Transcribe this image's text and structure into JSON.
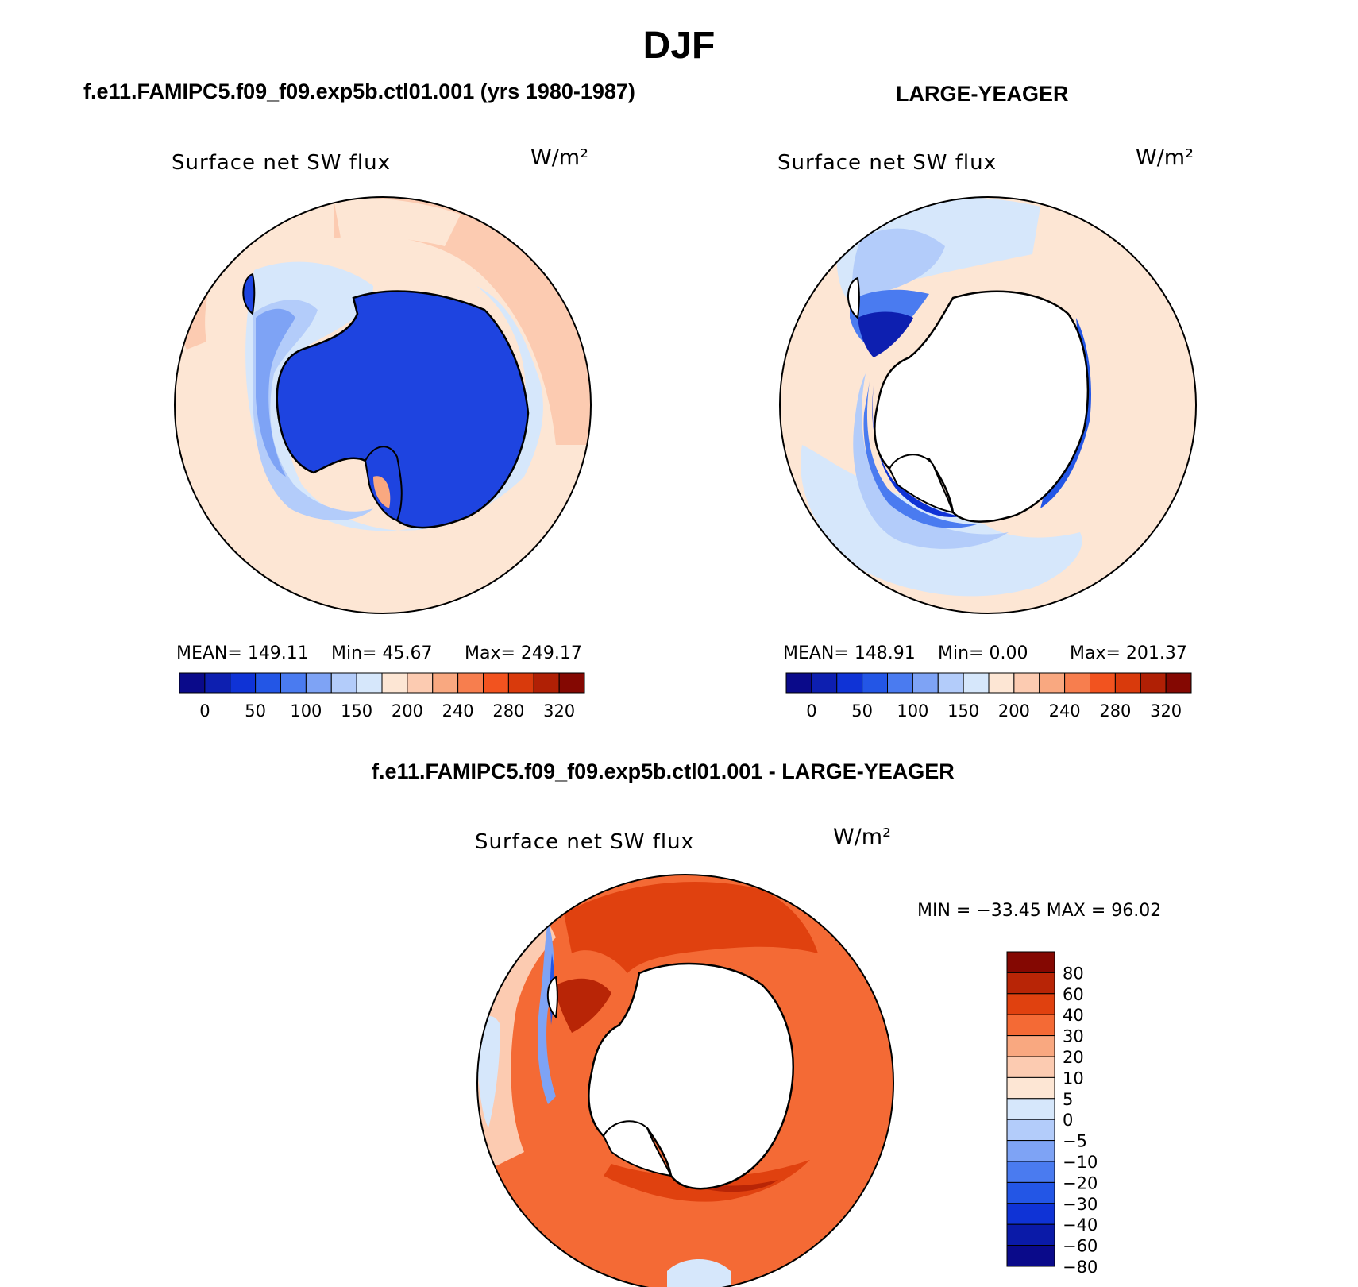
{
  "figure": {
    "title": "DJF"
  },
  "panels": [
    {
      "title": "f.e11.FAMIPC5.f09_f09.exp5b.ctl01.001 (yrs 1980-1987)",
      "field": "Surface net SW flux",
      "units": "W/m²",
      "stats": {
        "mean": "MEAN= 149.11",
        "min": "Min=   45.67",
        "max": "Max= 249.17"
      }
    },
    {
      "title": "LARGE-YEAGER",
      "field": "Surface net SW flux",
      "units": "W/m²",
      "stats": {
        "mean": "MEAN= 148.91",
        "min": "Min=    0.00",
        "max": "Max= 201.37"
      }
    },
    {
      "title": "f.e11.FAMIPC5.f09_f09.exp5b.ctl01.001 - LARGE-YEAGER",
      "field": "Surface net SW flux",
      "units": "W/m²",
      "stats": {
        "range": "MIN = −33.45 MAX =   96.02"
      }
    }
  ],
  "colorbars": {
    "absolute": {
      "colors": [
        "#0a0a8a",
        "#0d1fb0",
        "#0f33d6",
        "#2356e6",
        "#4a7bf0",
        "#7ea3f5",
        "#b3ccfa",
        "#d6e7fb",
        "#fde6d4",
        "#fccbb1",
        "#f9a880",
        "#f77e4e",
        "#f2531f",
        "#d93a0c",
        "#b02005",
        "#840802"
      ],
      "labels": [
        "0",
        "50",
        "100",
        "150",
        "200",
        "240",
        "280",
        "320"
      ]
    },
    "difference": {
      "colors": [
        "#840802",
        "#b82506",
        "#e0410f",
        "#f46a35",
        "#f9a880",
        "#fccbb1",
        "#fde6d4",
        "#d6e7fb",
        "#b3ccfa",
        "#7ea3f5",
        "#4a7bf0",
        "#2356e6",
        "#0f33d6",
        "#0a1aa8",
        "#0a0a8a"
      ],
      "labels": [
        "80",
        "60",
        "40",
        "30",
        "20",
        "10",
        "5",
        "0",
        "−5",
        "−10",
        "−20",
        "−30",
        "−40",
        "−60",
        "−80"
      ]
    }
  },
  "map_colors": {
    "ocean_light": "#fde6d4",
    "ocean_mid": "#fccbb1",
    "ocean_warm": "#f9a880",
    "pale_blue": "#d6e7fb",
    "blue_light": "#b3ccfa",
    "blue_mid": "#4a7bf0",
    "blue_strong": "#1e44e0",
    "blue_dark": "#0d1fb0",
    "red_mid": "#f46a35",
    "red_strong": "#e0410f",
    "red_dark": "#b82506",
    "land_none": "#ffffff"
  }
}
